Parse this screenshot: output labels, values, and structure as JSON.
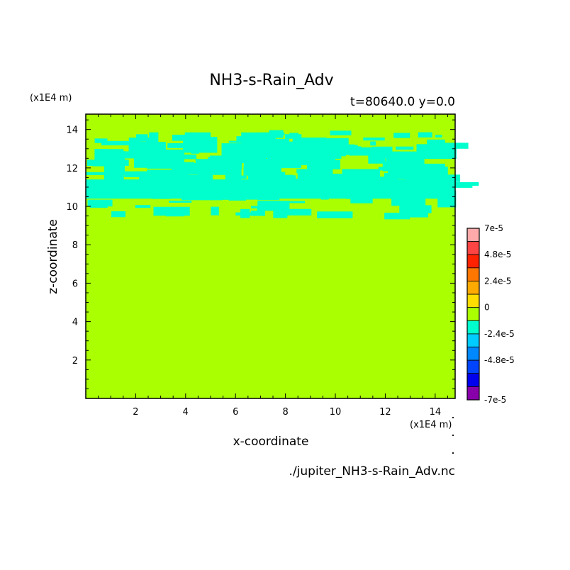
{
  "chart_data": {
    "type": "heatmap",
    "title": "NH3-s-Rain_Adv",
    "subtitle": "t=80640.0 y=0.0",
    "xlabel": "x-coordinate",
    "ylabel": "z-coordinate",
    "x_unit": "(x1E4 m)",
    "z_unit": "(x1E4 m)",
    "xlim": [
      0,
      14.8
    ],
    "ylim": [
      0,
      14.8
    ],
    "xticks": [
      2,
      4,
      6,
      8,
      10,
      12,
      14
    ],
    "yticks": [
      2,
      4,
      6,
      8,
      10,
      12,
      14
    ],
    "background_level_color": "#aaff00",
    "negative_level_color": "#00ffcc",
    "negative_band_z_range": [
      9.3,
      14
    ],
    "colorbar": {
      "levels": [
        {
          "label": "7e-5",
          "color": "#ffaaaa"
        },
        {
          "label": "",
          "color": "#ff4444"
        },
        {
          "label": "4.8e-5",
          "color": "#ff2200"
        },
        {
          "label": "",
          "color": "#ff7700"
        },
        {
          "label": "2.4e-5",
          "color": "#ffaa00"
        },
        {
          "label": "",
          "color": "#ffdd00"
        },
        {
          "label": "0",
          "color": "#aaff00"
        },
        {
          "label": "",
          "color": "#00ffcc"
        },
        {
          "label": "-2.4e-5",
          "color": "#00ccff"
        },
        {
          "label": "",
          "color": "#0088ff"
        },
        {
          "label": "-4.8e-5",
          "color": "#0044ff"
        },
        {
          "label": "",
          "color": "#0000ee"
        },
        {
          "label": "-7e-5",
          "color": "#8800aa"
        }
      ]
    }
  },
  "footer": {
    "filename": "./jupiter_NH3-s-Rain_Adv.nc"
  }
}
